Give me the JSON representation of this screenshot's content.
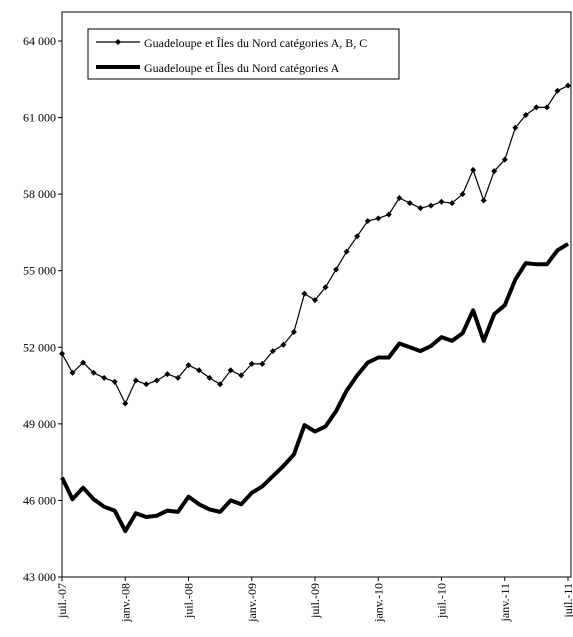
{
  "chart_data": {
    "type": "line",
    "categories": [
      "juil.-07",
      null,
      null,
      null,
      null,
      null,
      "janv.-08",
      null,
      null,
      null,
      null,
      null,
      "juil.-08",
      null,
      null,
      null,
      null,
      null,
      "janv.-09",
      null,
      null,
      null,
      null,
      null,
      "juil.-09",
      null,
      null,
      null,
      null,
      null,
      "janv.-10",
      null,
      null,
      null,
      null,
      null,
      "juil.-10",
      null,
      null,
      null,
      null,
      null,
      "janv.-11",
      null,
      null,
      null,
      null,
      null,
      "juil.-11"
    ],
    "series": [
      {
        "name": "Guadeloupe et Îles du Nord catégories A, B, C",
        "color": "#000000",
        "line_width": 1.2,
        "marker": "diamond",
        "values": [
          51750,
          51000,
          51400,
          51000,
          50800,
          50650,
          49800,
          50700,
          50550,
          50700,
          50950,
          50800,
          51300,
          51100,
          50800,
          50550,
          51100,
          50900,
          51350,
          51350,
          51850,
          52100,
          52600,
          54100,
          53850,
          54350,
          55050,
          55750,
          56350,
          56950,
          57050,
          57200,
          57850,
          57650,
          57450,
          57550,
          57700,
          57650,
          58000,
          58950,
          57750,
          58900,
          59350,
          60600,
          61100,
          61400,
          61400,
          62050,
          62250
        ]
      },
      {
        "name": "Guadeloupe et Îles du Nord catégories A",
        "color": "#000000",
        "line_width": 4,
        "marker": null,
        "values": [
          46900,
          46050,
          46500,
          46050,
          45750,
          45600,
          44800,
          45500,
          45350,
          45400,
          45600,
          45550,
          46150,
          45850,
          45650,
          45550,
          46000,
          45850,
          46300,
          46550,
          46950,
          47350,
          47800,
          48950,
          48700,
          48900,
          49500,
          50300,
          50900,
          51400,
          51600,
          51600,
          52150,
          52000,
          51850,
          52050,
          52400,
          52250,
          52550,
          53450,
          52250,
          53300,
          53650,
          54650,
          55300,
          55250,
          55250,
          55800,
          56050
        ]
      }
    ],
    "ylim": [
      43000,
      64000
    ],
    "yticks": [
      {
        "value": 43000,
        "label": "43 000"
      },
      {
        "value": 46000,
        "label": "46 000"
      },
      {
        "value": 49000,
        "label": "49 000"
      },
      {
        "value": 52000,
        "label": "52 000"
      },
      {
        "value": 55000,
        "label": "55 000"
      },
      {
        "value": 58000,
        "label": "58 000"
      },
      {
        "value": 61000,
        "label": "61 000"
      },
      {
        "value": 64000,
        "label": "64 000"
      }
    ],
    "grid": false,
    "legend": "upper left"
  }
}
